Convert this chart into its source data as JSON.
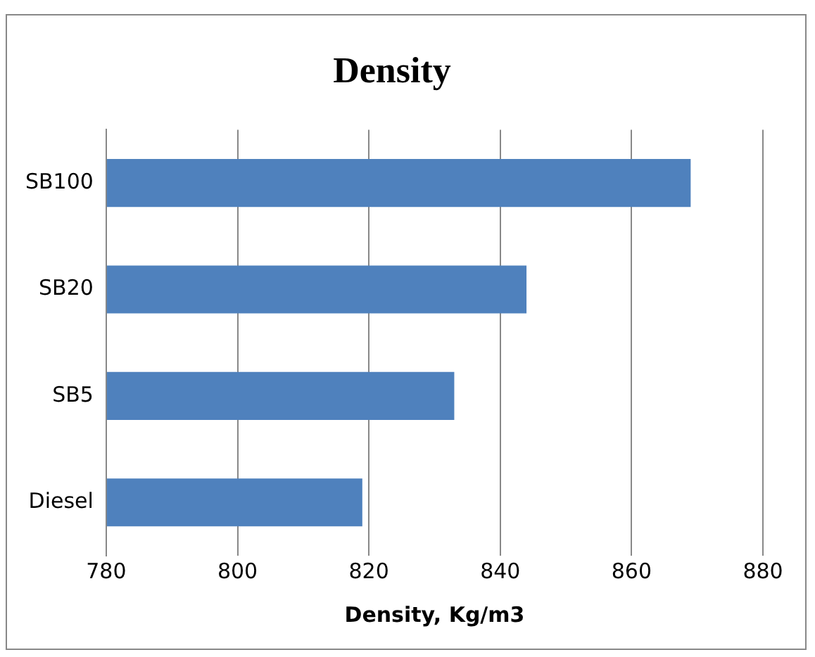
{
  "chart_data": {
    "type": "bar",
    "title": "Density",
    "xlabel": "Density, Kg/m3",
    "orientation": "horizontal",
    "categories": [
      "SB100",
      "SB20",
      "SB5",
      "Diesel"
    ],
    "values": [
      869,
      844,
      833,
      819
    ],
    "color": "#4f81bd",
    "xlim": [
      780,
      880
    ],
    "xticks": [
      780,
      800,
      820,
      840,
      860,
      880
    ],
    "grid": "x",
    "legend": false
  }
}
